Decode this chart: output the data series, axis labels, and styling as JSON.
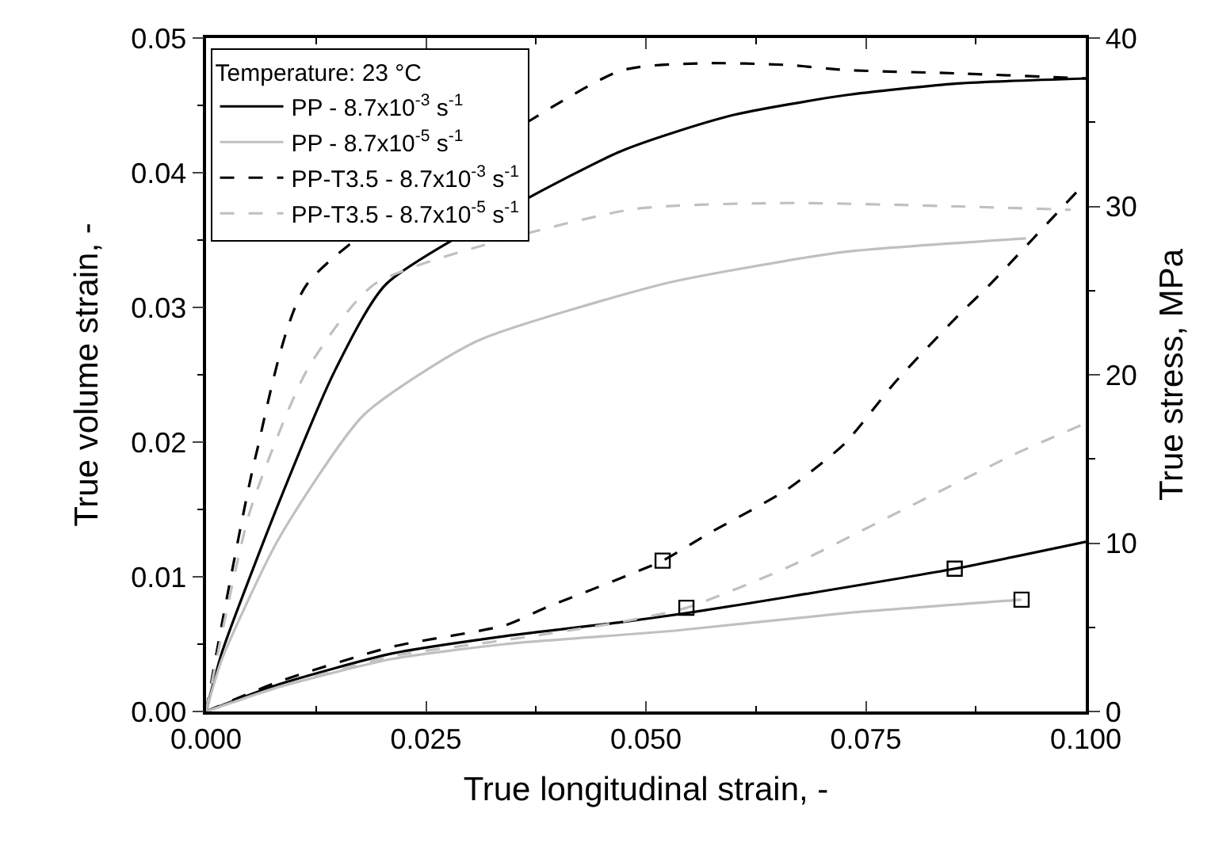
{
  "chart_data": {
    "type": "line",
    "xlabel": "True longitudinal strain, -",
    "ylabel": "True volume strain, -",
    "y2label": "True stress, MPa",
    "legend_title": "Temperature: 23 °C",
    "legend": "top left",
    "marker": "none",
    "xlim": [
      0,
      0.1
    ],
    "xticks": [
      {
        "value": 0,
        "label": "0.000"
      },
      0.025,
      {
        "value": 0.05,
        "label": "0.050"
      },
      0.075,
      {
        "value": 0.1,
        "label": "0.100"
      }
    ],
    "ylim": [
      0,
      0.05
    ],
    "yticks": [
      {
        "value": 0,
        "label": "0.00"
      },
      0.01,
      0.02,
      0.03,
      0.04,
      0.05
    ],
    "y2lim": [
      0,
      40
    ],
    "y2ticks": [
      0,
      10,
      20,
      30,
      40
    ],
    "series": [
      {
        "name": "PP - 8.7x10$^{-3}$ s$^{-1}$",
        "axis": "y2",
        "color": "#000000",
        "line_style": "solid",
        "x": [
          0,
          0.0018,
          0.0082,
          0.0147,
          0.0205,
          0.0468,
          0.0597,
          0.0726,
          0.0854,
          0.1
        ],
        "values": [
          0,
          3.5,
          12.3,
          20.3,
          25.4,
          33.2,
          35.4,
          36.6,
          37.3,
          37.6
        ]
      },
      {
        "name": "PP - 8.7x10$^{-5}$ s$^{-1}$",
        "axis": "y2",
        "color": "#c0c0c0",
        "line_style": "solid",
        "x": [
          0,
          0.0018,
          0.0082,
          0.0179,
          0.0308,
          0.052,
          0.0597,
          0.0726,
          0.0932
        ],
        "values": [
          0,
          3.1,
          10.2,
          17.6,
          22.0,
          25.4,
          26.2,
          27.3,
          28.1
        ]
      },
      {
        "name": "PP-T3.5 - 8.7x10$^{-3}$ s$^{-1}$",
        "axis": "y2",
        "color": "#000000",
        "line_style": "dashed",
        "x": [
          0,
          0.0018,
          0.0057,
          0.0115,
          0.0468,
          0.0565,
          0.0661,
          0.0727,
          0.0854,
          0.1
        ],
        "values": [
          0,
          5.2,
          15.3,
          25.4,
          38.0,
          38.5,
          38.4,
          38.1,
          37.9,
          37.6
        ]
      },
      {
        "name": "PP-T3.5 - 8.7x10$^{-5}$ s$^{-1}$",
        "axis": "y2",
        "color": "#c0c0c0",
        "line_style": "dashed",
        "x": [
          0,
          0.005,
          0.0115,
          0.0192,
          0.0481,
          0.0661,
          0.0854,
          0.0983
        ],
        "values": [
          0,
          11.9,
          20.3,
          25.4,
          29.8,
          30.2,
          30.0,
          29.8
        ]
      },
      {
        "axis": "y",
        "color": "#000000",
        "line_style": "solid",
        "x": [
          0,
          0.0082,
          0.0211,
          0.034,
          0.0468,
          0.0546,
          0.0661,
          0.0851,
          0.1
        ],
        "values": [
          0,
          0.002,
          0.0043,
          0.0056,
          0.0066,
          0.0073,
          0.0085,
          0.0106,
          0.0126
        ]
      },
      {
        "axis": "y",
        "color": "#c0c0c0",
        "line_style": "solid",
        "x": [
          0,
          0.0082,
          0.0211,
          0.034,
          0.0533,
          0.0726,
          0.0927
        ],
        "values": [
          0,
          0.0018,
          0.0039,
          0.005,
          0.006,
          0.0073,
          0.0083
        ]
      },
      {
        "axis": "y",
        "color": "#000000",
        "line_style": "dashed",
        "x": [
          0,
          0.0082,
          0.0211,
          0.034,
          0.0386,
          0.0519,
          0.0571,
          0.0661,
          0.0726,
          0.0784,
          0.0855,
          0.0891,
          0.099,
          0.1
        ],
        "values": [
          0,
          0.0022,
          0.0048,
          0.0064,
          0.0077,
          0.0112,
          0.0132,
          0.0165,
          0.0199,
          0.0245,
          0.0294,
          0.0317,
          0.0386,
          0.0393
        ]
      },
      {
        "axis": "y",
        "color": "#c0c0c0",
        "line_style": "dashed",
        "x": [
          0,
          0.0082,
          0.0211,
          0.034,
          0.0468,
          0.0546,
          0.0661,
          0.079,
          0.0919,
          0.1
        ],
        "values": [
          0,
          0.0018,
          0.0041,
          0.0053,
          0.0066,
          0.0077,
          0.0107,
          0.0149,
          0.0191,
          0.0214
        ]
      },
      {
        "type": "scatter",
        "axis": "y",
        "marker": "square",
        "color": "#000000",
        "x": [
          0.0519,
          0.0546,
          0.0851,
          0.0927
        ],
        "values": [
          0.0112,
          0.0077,
          0.0106,
          0.0083
        ]
      }
    ]
  }
}
